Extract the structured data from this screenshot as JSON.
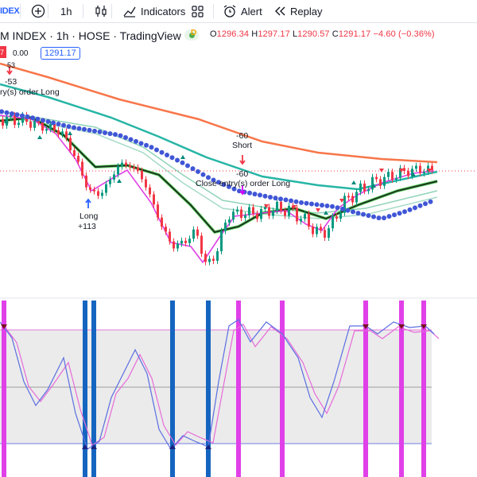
{
  "toolbar": {
    "symbol_fragment": "IDEX",
    "add_icon": "plus-circle-icon",
    "interval": "1h",
    "chart_type_icon": "candlestick-icon",
    "indicators_label": "Indicators",
    "layout_icon": "grid-icon",
    "alert_label": "Alert",
    "replay_label": "Replay"
  },
  "legend": {
    "title": "M INDEX · 1h · HOSE · TradingView",
    "badge": "D",
    "o_key": "O",
    "o_val": "1296.34",
    "h_key": "H",
    "h_val": "1297.17",
    "l_key": "L",
    "l_val": "1290.57",
    "c_key": "C",
    "c_val": "1291.17",
    "change": "−4.60 (−0.36%)",
    "red_tag": "7",
    "qty": "0.00",
    "price": "1291.17"
  },
  "annotations": {
    "top_small": "53",
    "top_value": "-53",
    "top_text": "ry(s) order Long",
    "short_value": "-60",
    "short_label": "Short",
    "close_value": "-60",
    "close_text": "Close entry(s) order Long",
    "long_label": "Long",
    "long_value": "+113"
  },
  "colors": {
    "up": "#089981",
    "down": "#f23645",
    "ema_orange": "#f7764a",
    "ema_teal": "#26b5a5",
    "psar_blue": "#4056d6",
    "stoch_blue": "#5b6ee1",
    "stoch_pink": "#e66bd8",
    "signal_blue": "#1565c0",
    "signal_magenta": "#e040e8"
  }
}
